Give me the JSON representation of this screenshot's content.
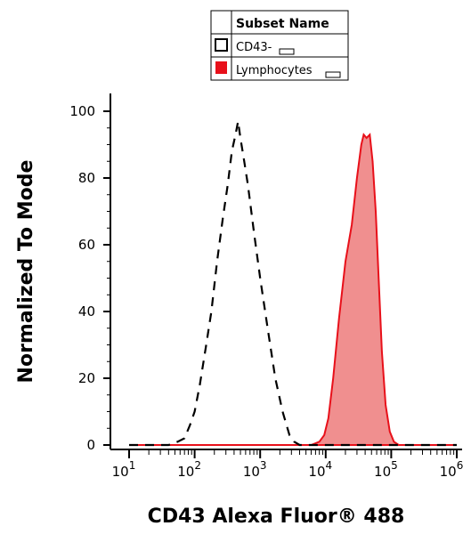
{
  "chart_data": {
    "type": "area",
    "xlabel": "CD43  Alexa Fluor® 488",
    "ylabel": "Normalized To Mode",
    "x_scale": "log",
    "xlim": [
      10,
      1000000
    ],
    "ylim": [
      0,
      100
    ],
    "x_tick_labels": [
      {
        "base": "10",
        "exp": "1"
      },
      {
        "base": "10",
        "exp": "2"
      },
      {
        "base": "10",
        "exp": "3"
      },
      {
        "base": "10",
        "exp": "4"
      },
      {
        "base": "10",
        "exp": "5"
      },
      {
        "base": "10",
        "exp": "6"
      }
    ],
    "y_ticks": [
      "0",
      "20",
      "40",
      "60",
      "80",
      "100"
    ],
    "legend": {
      "header": "Subset Name",
      "position": "top-center",
      "entries": [
        "CD43-",
        "Lymphocytes"
      ]
    },
    "series": [
      {
        "name": "CD43-",
        "style": "dashed-outline",
        "color": "#000000",
        "points": [
          [
            10,
            0
          ],
          [
            40,
            0
          ],
          [
            55,
            1
          ],
          [
            70,
            2
          ],
          [
            85,
            6
          ],
          [
            100,
            10
          ],
          [
            120,
            18
          ],
          [
            150,
            30
          ],
          [
            180,
            40
          ],
          [
            220,
            55
          ],
          [
            270,
            68
          ],
          [
            320,
            78
          ],
          [
            370,
            88
          ],
          [
            420,
            93
          ],
          [
            460,
            97
          ],
          [
            500,
            92
          ],
          [
            560,
            86
          ],
          [
            650,
            78
          ],
          [
            800,
            64
          ],
          [
            1000,
            50
          ],
          [
            1300,
            35
          ],
          [
            1700,
            20
          ],
          [
            2200,
            10
          ],
          [
            2800,
            3
          ],
          [
            3300,
            1
          ],
          [
            4000,
            0
          ],
          [
            1000000,
            0
          ]
        ]
      },
      {
        "name": "Lymphocytes",
        "style": "filled",
        "color": "#e8101a",
        "fill": "#f08f8f",
        "points": [
          [
            10,
            0
          ],
          [
            6000,
            0
          ],
          [
            8000,
            1
          ],
          [
            9500,
            3
          ],
          [
            11000,
            8
          ],
          [
            13000,
            20
          ],
          [
            16000,
            38
          ],
          [
            20000,
            55
          ],
          [
            25000,
            66
          ],
          [
            30000,
            80
          ],
          [
            35000,
            90
          ],
          [
            38000,
            93
          ],
          [
            42000,
            92
          ],
          [
            47000,
            93
          ],
          [
            52000,
            85
          ],
          [
            58000,
            70
          ],
          [
            65000,
            48
          ],
          [
            72000,
            28
          ],
          [
            82000,
            12
          ],
          [
            95000,
            4
          ],
          [
            110000,
            1
          ],
          [
            130000,
            0
          ],
          [
            1000000,
            0
          ]
        ]
      }
    ]
  }
}
